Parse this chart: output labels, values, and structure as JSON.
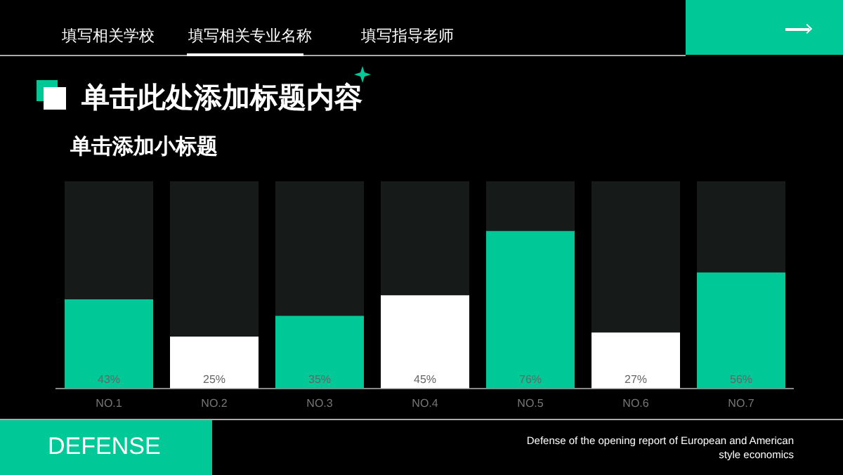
{
  "chart_data": {
    "type": "bar",
    "title": "单击此处添加标题内容",
    "subtitle": "单击添加小标题",
    "categories": [
      "NO.1",
      "NO.2",
      "NO.3",
      "NO.4",
      "NO.5",
      "NO.6",
      "NO.7"
    ],
    "values": [
      43,
      25,
      35,
      45,
      76,
      27,
      56
    ],
    "colors": [
      "#00c896",
      "#ffffff",
      "#00c896",
      "#ffffff",
      "#00c896",
      "#ffffff",
      "#00c896"
    ],
    "value_labels": [
      "43%",
      "25%",
      "35%",
      "45%",
      "76%",
      "27%",
      "56%"
    ],
    "ylim": [
      0,
      100
    ],
    "legend": false,
    "annotations": [
      "填写相关学校",
      "填写相关专业名称",
      "填写指导老师",
      "DEFENSE",
      "Defense of the opening report of European and American style economics"
    ]
  }
}
